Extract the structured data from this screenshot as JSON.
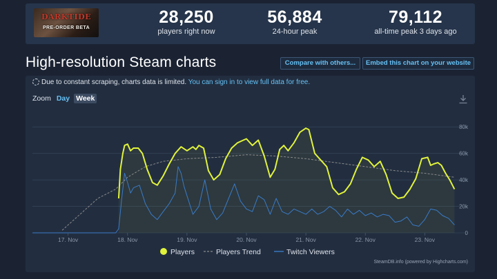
{
  "game": {
    "banner_title": "DARKTIDE",
    "banner_subtitle": "PRE-ORDER BETA"
  },
  "stats": [
    {
      "value": "28,250",
      "label": "players right now"
    },
    {
      "value": "56,884",
      "label": "24-hour peak"
    },
    {
      "value": "79,112",
      "label": "all-time peak 3 days ago"
    }
  ],
  "page": {
    "title": "High-resolution Steam charts"
  },
  "buttons": {
    "compare": "Compare with others...",
    "embed": "Embed this chart on your website"
  },
  "notice": {
    "text": "Due to constant scraping, charts data is limited.",
    "link": "You can sign in to view full data for free."
  },
  "zoom": {
    "label": "Zoom",
    "options": [
      "Day",
      "Week"
    ],
    "selected": "Week"
  },
  "credit": "SteamDB.info (powered by Highcharts.com)",
  "colors": {
    "players": "#e2f33b",
    "trend": "#8c8c8c",
    "twitch": "#3a7bc8",
    "link": "#66c0f4"
  },
  "chart_data": {
    "type": "line",
    "x_tick_labels": [
      "17. Nov",
      "18. Nov",
      "19. Nov",
      "20. Nov",
      "21. Nov",
      "22. Nov",
      "23. Nov"
    ],
    "y_tick_labels": [
      "0",
      "20k",
      "40k",
      "60k",
      "80k"
    ],
    "ylim": [
      0,
      90000
    ],
    "xlim": [
      16.4,
      23.6
    ],
    "grid": true,
    "legend_position": "bottom",
    "series": [
      {
        "name": "Players",
        "x": [
          17.85,
          17.88,
          17.92,
          17.95,
          18.0,
          18.05,
          18.1,
          18.18,
          18.25,
          18.33,
          18.42,
          18.5,
          18.6,
          18.7,
          18.8,
          18.9,
          19.0,
          19.1,
          19.15,
          19.2,
          19.28,
          19.36,
          19.45,
          19.55,
          19.65,
          19.75,
          19.85,
          19.95,
          20.0,
          20.1,
          20.2,
          20.3,
          20.4,
          20.48,
          20.56,
          20.63,
          20.7,
          20.8,
          20.9,
          21.0,
          21.05,
          21.15,
          21.25,
          21.35,
          21.45,
          21.55,
          21.65,
          21.75,
          21.85,
          21.95,
          22.05,
          22.15,
          22.25,
          22.35,
          22.45,
          22.55,
          22.65,
          22.75,
          22.85,
          22.95,
          23.05,
          23.1,
          23.15,
          23.22,
          23.28,
          23.35,
          23.42,
          23.5
        ],
        "values": [
          26000,
          48000,
          60000,
          66000,
          67000,
          62000,
          64000,
          64000,
          60000,
          48000,
          38000,
          36000,
          43000,
          52000,
          60000,
          65000,
          62000,
          65000,
          63000,
          66000,
          64000,
          47000,
          40000,
          44000,
          56000,
          64000,
          68000,
          70000,
          71000,
          66000,
          70000,
          58000,
          42000,
          48000,
          63000,
          66000,
          62000,
          68000,
          76000,
          79000,
          78000,
          60000,
          55000,
          50000,
          34000,
          29000,
          31000,
          37000,
          48000,
          57000,
          55000,
          50000,
          54000,
          44000,
          30000,
          26000,
          27000,
          33000,
          41000,
          56000,
          57000,
          51000,
          52000,
          53000,
          51000,
          45000,
          40000,
          33000
        ]
      },
      {
        "name": "Players Trend",
        "x": [
          16.9,
          17.2,
          17.5,
          17.8,
          18.0,
          18.3,
          18.6,
          19.0,
          19.5,
          20.0,
          20.5,
          21.0,
          21.5,
          22.0,
          22.5,
          23.0,
          23.5
        ],
        "values": [
          2000,
          14000,
          26000,
          33000,
          42000,
          50000,
          54000,
          56000,
          57000,
          59000,
          58000,
          56000,
          53000,
          50000,
          47000,
          45000,
          42000
        ]
      },
      {
        "name": "Twitch Viewers",
        "x": [
          16.4,
          17.5,
          17.8,
          17.85,
          17.9,
          17.95,
          18.0,
          18.05,
          18.1,
          18.2,
          18.3,
          18.4,
          18.5,
          18.6,
          18.7,
          18.8,
          18.85,
          18.9,
          18.95,
          19.0,
          19.1,
          19.2,
          19.3,
          19.4,
          19.5,
          19.6,
          19.7,
          19.8,
          19.9,
          20.0,
          20.1,
          20.2,
          20.3,
          20.4,
          20.5,
          20.6,
          20.7,
          20.8,
          20.9,
          21.0,
          21.1,
          21.2,
          21.3,
          21.4,
          21.5,
          21.6,
          21.7,
          21.8,
          21.9,
          22.0,
          22.1,
          22.2,
          22.3,
          22.4,
          22.5,
          22.6,
          22.7,
          22.8,
          22.9,
          23.0,
          23.1,
          23.2,
          23.3,
          23.4,
          23.5
        ],
        "values": [
          0,
          0,
          0,
          3000,
          25000,
          45000,
          38000,
          30000,
          34000,
          36000,
          22000,
          14000,
          10000,
          16000,
          22000,
          30000,
          50000,
          45000,
          35000,
          28000,
          14000,
          20000,
          40000,
          18000,
          10000,
          15000,
          26000,
          37000,
          24000,
          18000,
          16000,
          28000,
          25000,
          14000,
          26000,
          16000,
          14000,
          18000,
          16000,
          14000,
          18000,
          14000,
          16000,
          20000,
          17000,
          12000,
          18000,
          14000,
          17000,
          13000,
          15000,
          12000,
          14000,
          13000,
          8000,
          9000,
          12000,
          6000,
          5000,
          10000,
          18000,
          17000,
          13000,
          11000,
          6000
        ]
      }
    ]
  }
}
